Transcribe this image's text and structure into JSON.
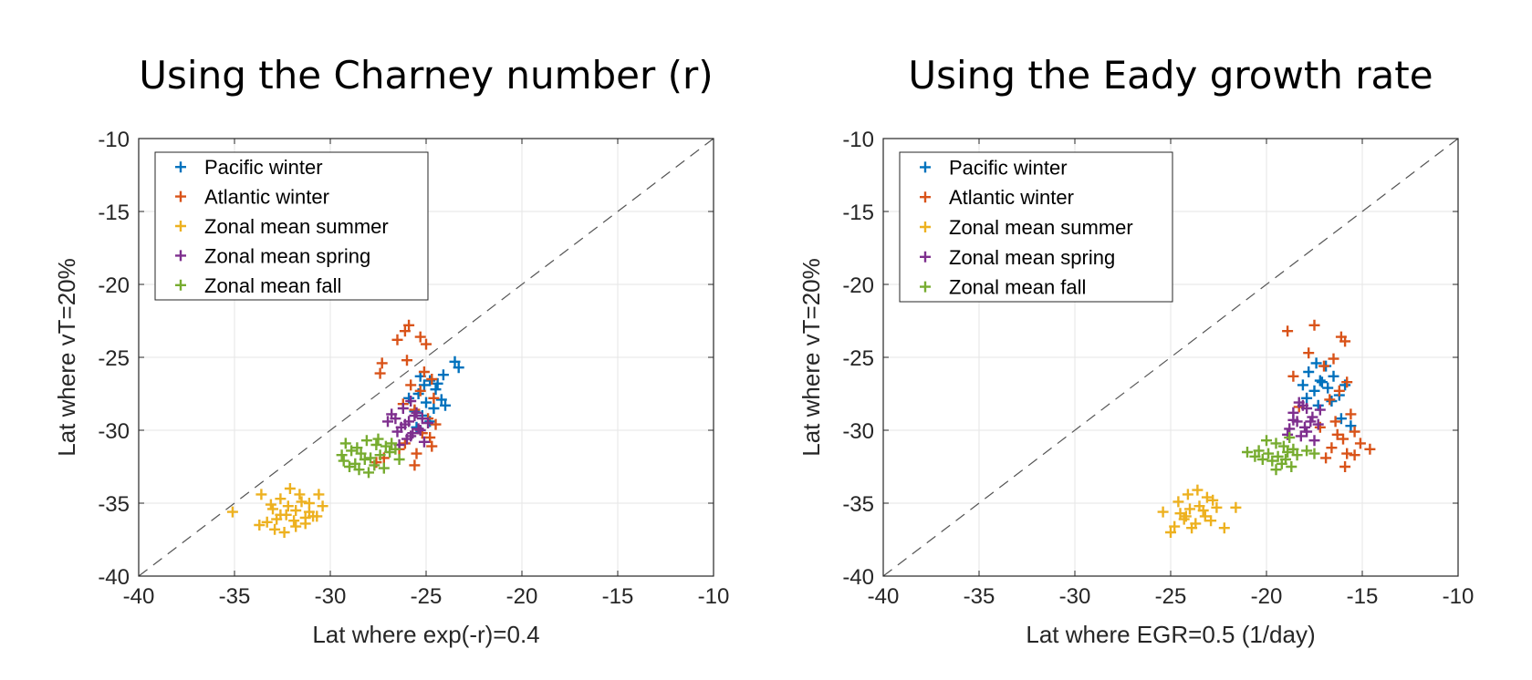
{
  "chart_data": [
    {
      "type": "scatter",
      "title": "Using the Charney number (r)",
      "xlabel": "Lat where exp(-r)=0.4",
      "ylabel": "Lat where vT=20%",
      "xlim": [
        -40,
        -10
      ],
      "ylim": [
        -40,
        -10
      ],
      "xticks": [
        "-40",
        "-35",
        "-30",
        "-25",
        "-20",
        "-15",
        "-10"
      ],
      "yticks": [
        "-40",
        "-35",
        "-30",
        "-25",
        "-20",
        "-15",
        "-10"
      ],
      "grid": true,
      "reference_line": "y = x (dashed)",
      "legend_position": "top-left",
      "series": [
        {
          "name": "Pacific winter",
          "color": "#0072BD",
          "points": [
            [
              -23.5,
              -25.3
            ],
            [
              -23.3,
              -25.7
            ],
            [
              -24.1,
              -26.2
            ],
            [
              -24.8,
              -26.6
            ],
            [
              -25.1,
              -26.9
            ],
            [
              -24.5,
              -27.2
            ],
            [
              -25.4,
              -27.5
            ],
            [
              -24.2,
              -27.9
            ],
            [
              -25.0,
              -28.1
            ],
            [
              -24.6,
              -28.5
            ],
            [
              -25.6,
              -28.7
            ],
            [
              -24.0,
              -28.3
            ],
            [
              -25.2,
              -29.0
            ],
            [
              -24.8,
              -29.4
            ],
            [
              -25.5,
              -29.8
            ],
            [
              -25.9,
              -27.8
            ],
            [
              -24.4,
              -26.8
            ],
            [
              -25.3,
              -26.3
            ]
          ]
        },
        {
          "name": "Atlantic winter",
          "color": "#D95319",
          "points": [
            [
              -25.9,
              -22.8
            ],
            [
              -26.1,
              -23.2
            ],
            [
              -25.3,
              -23.6
            ],
            [
              -26.5,
              -23.8
            ],
            [
              -25.0,
              -24.1
            ],
            [
              -27.3,
              -25.4
            ],
            [
              -27.4,
              -26.1
            ],
            [
              -26.0,
              -25.2
            ],
            [
              -25.1,
              -26.0
            ],
            [
              -24.7,
              -26.5
            ],
            [
              -25.8,
              -26.9
            ],
            [
              -25.3,
              -27.3
            ],
            [
              -24.6,
              -27.8
            ],
            [
              -26.2,
              -28.2
            ],
            [
              -25.6,
              -28.6
            ],
            [
              -24.9,
              -29.2
            ],
            [
              -24.5,
              -29.6
            ],
            [
              -25.2,
              -30.2
            ],
            [
              -24.8,
              -30.5
            ],
            [
              -26.1,
              -30.9
            ],
            [
              -26.4,
              -31.3
            ],
            [
              -25.5,
              -31.6
            ],
            [
              -27.2,
              -31.9
            ],
            [
              -27.6,
              -32.2
            ],
            [
              -25.6,
              -32.4
            ],
            [
              -24.7,
              -31.1
            ]
          ]
        },
        {
          "name": "Zonal mean summer",
          "color": "#EDB120",
          "points": [
            [
              -35.1,
              -35.6
            ],
            [
              -33.6,
              -34.4
            ],
            [
              -33.1,
              -35.1
            ],
            [
              -32.6,
              -34.7
            ],
            [
              -32.1,
              -34.0
            ],
            [
              -31.6,
              -34.4
            ],
            [
              -31.1,
              -35.0
            ],
            [
              -30.6,
              -34.4
            ],
            [
              -30.4,
              -35.2
            ],
            [
              -30.7,
              -35.9
            ],
            [
              -31.3,
              -36.0
            ],
            [
              -31.8,
              -35.5
            ],
            [
              -32.3,
              -35.8
            ],
            [
              -32.8,
              -36.1
            ],
            [
              -33.3,
              -36.3
            ],
            [
              -33.7,
              -36.5
            ],
            [
              -32.9,
              -36.8
            ],
            [
              -32.4,
              -37.0
            ],
            [
              -31.8,
              -36.6
            ],
            [
              -31.3,
              -36.4
            ],
            [
              -31.1,
              -35.6
            ],
            [
              -31.5,
              -34.9
            ],
            [
              -32.2,
              -35.2
            ],
            [
              -32.6,
              -35.8
            ],
            [
              -31.9,
              -36.2
            ],
            [
              -33.0,
              -35.4
            ],
            [
              -30.9,
              -35.9
            ]
          ]
        },
        {
          "name": "Zonal mean spring",
          "color": "#7E2F8E",
          "points": [
            [
              -25.8,
              -28.0
            ],
            [
              -26.2,
              -28.5
            ],
            [
              -25.5,
              -28.8
            ],
            [
              -26.6,
              -29.2
            ],
            [
              -25.9,
              -29.4
            ],
            [
              -26.3,
              -29.8
            ],
            [
              -25.7,
              -30.2
            ],
            [
              -26.0,
              -30.6
            ],
            [
              -25.4,
              -29.9
            ],
            [
              -24.9,
              -29.5
            ],
            [
              -25.1,
              -30.8
            ],
            [
              -26.4,
              -31.0
            ],
            [
              -26.8,
              -28.9
            ],
            [
              -25.6,
              -29.0
            ],
            [
              -25.2,
              -29.2
            ],
            [
              -26.1,
              -29.6
            ],
            [
              -25.8,
              -30.4
            ],
            [
              -25.3,
              -30.0
            ],
            [
              -26.5,
              -30.1
            ],
            [
              -27.0,
              -29.4
            ]
          ]
        },
        {
          "name": "Zonal mean fall",
          "color": "#77AC30",
          "points": [
            [
              -29.2,
              -30.9
            ],
            [
              -28.6,
              -31.2
            ],
            [
              -28.1,
              -30.7
            ],
            [
              -27.6,
              -31.0
            ],
            [
              -27.1,
              -31.1
            ],
            [
              -26.6,
              -31.3
            ],
            [
              -29.4,
              -31.7
            ],
            [
              -28.9,
              -31.4
            ],
            [
              -28.4,
              -31.6
            ],
            [
              -27.9,
              -31.9
            ],
            [
              -27.4,
              -31.7
            ],
            [
              -26.9,
              -31.5
            ],
            [
              -26.4,
              -32.0
            ],
            [
              -29.3,
              -32.1
            ],
            [
              -28.7,
              -32.3
            ],
            [
              -28.2,
              -32.0
            ],
            [
              -27.7,
              -32.4
            ],
            [
              -27.2,
              -32.6
            ],
            [
              -28.5,
              -32.7
            ],
            [
              -27.5,
              -30.6
            ],
            [
              -28.0,
              -32.9
            ],
            [
              -29.0,
              -32.5
            ],
            [
              -26.8,
              -30.9
            ]
          ]
        }
      ]
    },
    {
      "type": "scatter",
      "title": "Using the Eady growth rate",
      "xlabel": "Lat where EGR=0.5 (1/day)",
      "ylabel": "Lat where vT=20%",
      "xlim": [
        -40,
        -10
      ],
      "ylim": [
        -40,
        -10
      ],
      "xticks": [
        "-40",
        "-35",
        "-30",
        "-25",
        "-20",
        "-15",
        "-10"
      ],
      "yticks": [
        "-40",
        "-35",
        "-30",
        "-25",
        "-20",
        "-15",
        "-10"
      ],
      "grid": true,
      "reference_line": "y = x (dashed)",
      "legend_position": "top-left",
      "series": [
        {
          "name": "Pacific winter",
          "color": "#0072BD",
          "points": [
            [
              -17.4,
              -25.4
            ],
            [
              -16.9,
              -25.6
            ],
            [
              -17.8,
              -26.0
            ],
            [
              -16.5,
              -26.3
            ],
            [
              -17.2,
              -26.6
            ],
            [
              -18.1,
              -26.9
            ],
            [
              -16.8,
              -27.1
            ],
            [
              -17.5,
              -27.3
            ],
            [
              -16.2,
              -27.6
            ],
            [
              -17.9,
              -27.8
            ],
            [
              -16.6,
              -28.0
            ],
            [
              -17.3,
              -28.3
            ],
            [
              -15.9,
              -26.9
            ],
            [
              -16.1,
              -29.2
            ],
            [
              -15.6,
              -29.7
            ],
            [
              -17.1,
              -26.7
            ]
          ]
        },
        {
          "name": "Atlantic winter",
          "color": "#D95319",
          "points": [
            [
              -17.5,
              -22.8
            ],
            [
              -18.9,
              -23.2
            ],
            [
              -16.1,
              -23.6
            ],
            [
              -15.9,
              -23.9
            ],
            [
              -17.8,
              -24.7
            ],
            [
              -16.5,
              -25.1
            ],
            [
              -17.0,
              -25.6
            ],
            [
              -18.6,
              -26.3
            ],
            [
              -15.8,
              -26.7
            ],
            [
              -16.2,
              -27.3
            ],
            [
              -16.7,
              -27.9
            ],
            [
              -18.3,
              -28.4
            ],
            [
              -15.6,
              -28.9
            ],
            [
              -16.4,
              -29.4
            ],
            [
              -17.2,
              -29.8
            ],
            [
              -15.4,
              -30.1
            ],
            [
              -16.0,
              -30.6
            ],
            [
              -15.1,
              -30.9
            ],
            [
              -16.6,
              -31.2
            ],
            [
              -14.6,
              -31.3
            ],
            [
              -15.8,
              -31.6
            ],
            [
              -16.9,
              -31.9
            ],
            [
              -15.4,
              -31.7
            ],
            [
              -15.9,
              -32.5
            ],
            [
              -16.3,
              -30.3
            ]
          ]
        },
        {
          "name": "Zonal mean summer",
          "color": "#EDB120",
          "points": [
            [
              -25.4,
              -35.6
            ],
            [
              -24.6,
              -34.9
            ],
            [
              -24.1,
              -34.4
            ],
            [
              -23.6,
              -34.1
            ],
            [
              -23.1,
              -34.6
            ],
            [
              -23.5,
              -35.2
            ],
            [
              -24.0,
              -35.4
            ],
            [
              -24.5,
              -35.7
            ],
            [
              -23.2,
              -35.9
            ],
            [
              -22.6,
              -35.3
            ],
            [
              -22.9,
              -36.2
            ],
            [
              -23.7,
              -36.4
            ],
            [
              -24.3,
              -36.1
            ],
            [
              -24.8,
              -36.6
            ],
            [
              -25.0,
              -37.0
            ],
            [
              -22.2,
              -36.7
            ],
            [
              -21.6,
              -35.3
            ],
            [
              -23.3,
              -35.5
            ],
            [
              -23.9,
              -36.7
            ],
            [
              -22.8,
              -34.8
            ],
            [
              -24.2,
              -35.9
            ]
          ]
        },
        {
          "name": "Zonal mean spring",
          "color": "#7E2F8E",
          "points": [
            [
              -18.3,
              -28.1
            ],
            [
              -17.9,
              -28.5
            ],
            [
              -18.6,
              -28.8
            ],
            [
              -17.6,
              -29.1
            ],
            [
              -18.4,
              -29.4
            ],
            [
              -17.3,
              -29.6
            ],
            [
              -18.8,
              -29.9
            ],
            [
              -17.9,
              -30.1
            ],
            [
              -18.2,
              -30.4
            ],
            [
              -17.5,
              -30.7
            ],
            [
              -18.6,
              -29.3
            ],
            [
              -17.2,
              -28.6
            ],
            [
              -18.0,
              -29.8
            ],
            [
              -18.9,
              -30.3
            ],
            [
              -17.7,
              -29.4
            ],
            [
              -18.1,
              -28.3
            ]
          ]
        },
        {
          "name": "Zonal mean fall",
          "color": "#77AC30",
          "points": [
            [
              -21.0,
              -31.5
            ],
            [
              -20.0,
              -30.7
            ],
            [
              -19.5,
              -30.9
            ],
            [
              -19.1,
              -31.1
            ],
            [
              -18.6,
              -31.3
            ],
            [
              -20.4,
              -31.4
            ],
            [
              -19.9,
              -31.6
            ],
            [
              -19.4,
              -31.8
            ],
            [
              -18.9,
              -31.5
            ],
            [
              -18.4,
              -31.7
            ],
            [
              -17.9,
              -31.4
            ],
            [
              -20.2,
              -32.0
            ],
            [
              -19.7,
              -32.1
            ],
            [
              -19.2,
              -32.3
            ],
            [
              -18.7,
              -32.5
            ],
            [
              -19.5,
              -32.7
            ],
            [
              -18.8,
              -30.5
            ],
            [
              -20.6,
              -31.8
            ],
            [
              -19.0,
              -32.0
            ],
            [
              -17.5,
              -31.6
            ]
          ]
        }
      ]
    }
  ]
}
